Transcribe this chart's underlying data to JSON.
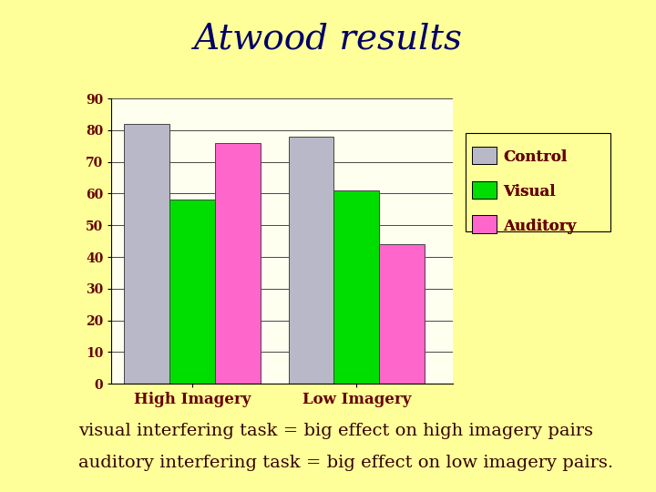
{
  "title": "Atwood results",
  "categories": [
    "High Imagery",
    "Low Imagery"
  ],
  "series": {
    "Control": [
      82,
      78
    ],
    "Visual": [
      58,
      61
    ],
    "Auditory": [
      76,
      44
    ]
  },
  "colors": {
    "Control": "#b8b8c8",
    "Visual": "#00dd00",
    "Auditory": "#ff66cc"
  },
  "ylim": [
    0,
    90
  ],
  "yticks": [
    0,
    10,
    20,
    30,
    40,
    50,
    60,
    70,
    80,
    90
  ],
  "background_color": "#ffff99",
  "plot_area_color": "#fffff0",
  "title_color": "#000066",
  "label_color": "#660000",
  "annotation_line1": "visual interfering task = big effect on high imagery pairs",
  "annotation_line2": "auditory interfering task = big effect on low imagery pairs.",
  "annotation_color": "#330000",
  "annotation_fontsize": 14,
  "title_fontsize": 28,
  "tick_fontsize": 10,
  "legend_fontsize": 12,
  "category_fontsize": 12
}
